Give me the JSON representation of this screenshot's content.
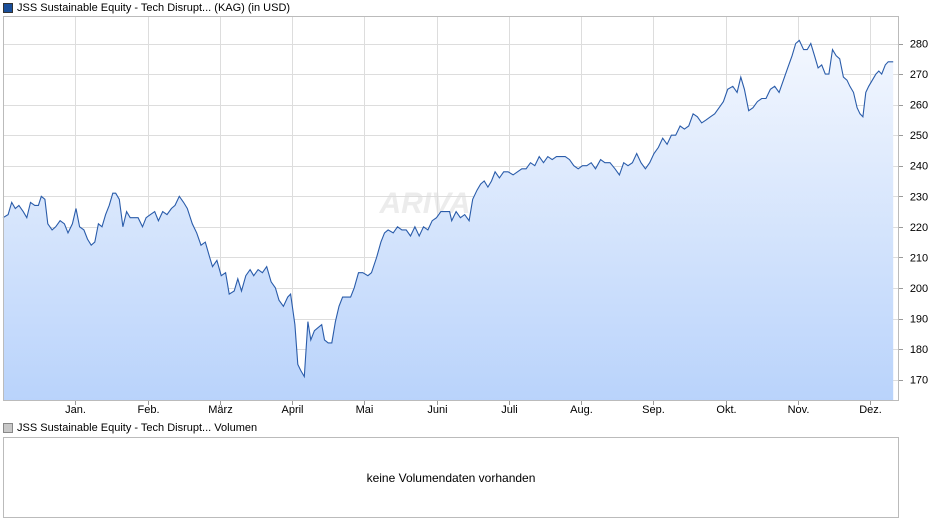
{
  "legend": {
    "price_label": "JSS Sustainable Equity - Tech Disrupt... (KAG) (in USD)",
    "volume_label": "JSS Sustainable Equity - Tech Disrupt... Volumen"
  },
  "volume": {
    "message": "keine Volumendaten vorhanden"
  },
  "watermark": "ARIVA.DE",
  "colors": {
    "line": "#2a5caa",
    "fill_top": "#f3f7fe",
    "fill_bottom": "#b9d3fb",
    "grid": "#dddddd",
    "frame": "#bbbbbb"
  },
  "chart_data": {
    "type": "area",
    "title": "",
    "xlabel": "",
    "ylabel": "",
    "y_axis_side": "right",
    "grid": true,
    "x_range": [
      0,
      12.4
    ],
    "ylim": [
      163,
      289
    ],
    "y_ticks": [
      170,
      180,
      190,
      200,
      210,
      220,
      230,
      240,
      250,
      260,
      270,
      280
    ],
    "x_ticks": [
      {
        "label": "Jan.",
        "x": 1
      },
      {
        "label": "Feb.",
        "x": 2
      },
      {
        "label": "März",
        "x": 3
      },
      {
        "label": "April",
        "x": 4
      },
      {
        "label": "Mai",
        "x": 5
      },
      {
        "label": "Juni",
        "x": 6
      },
      {
        "label": "Juli",
        "x": 7
      },
      {
        "label": "Aug.",
        "x": 8
      },
      {
        "label": "Sep.",
        "x": 9
      },
      {
        "label": "Okt.",
        "x": 10
      },
      {
        "label": "Nov.",
        "x": 11
      },
      {
        "label": "Dez.",
        "x": 12
      }
    ],
    "series": [
      {
        "points": [
          [
            0.0,
            223
          ],
          [
            0.07,
            224
          ],
          [
            0.12,
            228
          ],
          [
            0.17,
            226
          ],
          [
            0.22,
            227
          ],
          [
            0.28,
            225
          ],
          [
            0.33,
            223
          ],
          [
            0.38,
            228
          ],
          [
            0.44,
            227
          ],
          [
            0.49,
            227
          ],
          [
            0.53,
            230
          ],
          [
            0.58,
            229
          ],
          [
            0.62,
            221
          ],
          [
            0.68,
            219
          ],
          [
            0.73,
            220
          ],
          [
            0.79,
            222
          ],
          [
            0.85,
            221
          ],
          [
            0.9,
            218
          ],
          [
            0.96,
            221
          ],
          [
            1.01,
            226
          ],
          [
            1.06,
            220
          ],
          [
            1.12,
            219
          ],
          [
            1.17,
            216
          ],
          [
            1.22,
            214
          ],
          [
            1.27,
            215
          ],
          [
            1.32,
            221
          ],
          [
            1.37,
            220
          ],
          [
            1.42,
            224
          ],
          [
            1.47,
            227
          ],
          [
            1.52,
            231
          ],
          [
            1.56,
            231
          ],
          [
            1.61,
            229
          ],
          [
            1.66,
            220
          ],
          [
            1.71,
            225
          ],
          [
            1.76,
            223
          ],
          [
            1.81,
            223
          ],
          [
            1.87,
            223
          ],
          [
            1.93,
            220
          ],
          [
            1.98,
            223
          ],
          [
            2.04,
            224
          ],
          [
            2.1,
            225
          ],
          [
            2.15,
            222
          ],
          [
            2.21,
            225
          ],
          [
            2.27,
            224
          ],
          [
            2.33,
            226
          ],
          [
            2.38,
            227
          ],
          [
            2.44,
            230
          ],
          [
            2.5,
            228
          ],
          [
            2.55,
            226
          ],
          [
            2.62,
            221
          ],
          [
            2.68,
            218
          ],
          [
            2.74,
            214
          ],
          [
            2.8,
            215
          ],
          [
            2.86,
            210
          ],
          [
            2.9,
            207
          ],
          [
            2.96,
            209
          ],
          [
            3.02,
            204
          ],
          [
            3.08,
            205
          ],
          [
            3.13,
            198
          ],
          [
            3.2,
            199
          ],
          [
            3.25,
            203
          ],
          [
            3.3,
            199
          ],
          [
            3.36,
            204
          ],
          [
            3.42,
            206
          ],
          [
            3.47,
            204
          ],
          [
            3.53,
            206
          ],
          [
            3.59,
            205
          ],
          [
            3.65,
            207
          ],
          [
            3.71,
            202
          ],
          [
            3.77,
            200
          ],
          [
            3.82,
            196
          ],
          [
            3.88,
            194
          ],
          [
            3.94,
            197
          ],
          [
            3.98,
            198
          ],
          [
            4.04,
            188
          ],
          [
            4.08,
            175
          ],
          [
            4.12,
            173
          ],
          [
            4.17,
            171
          ],
          [
            4.22,
            189
          ],
          [
            4.26,
            183
          ],
          [
            4.31,
            186
          ],
          [
            4.36,
            187
          ],
          [
            4.41,
            188
          ],
          [
            4.45,
            183
          ],
          [
            4.5,
            182
          ],
          [
            4.55,
            182
          ],
          [
            4.6,
            189
          ],
          [
            4.65,
            194
          ],
          [
            4.7,
            197
          ],
          [
            4.75,
            197
          ],
          [
            4.81,
            197
          ],
          [
            4.86,
            200
          ],
          [
            4.92,
            205
          ],
          [
            4.98,
            205
          ],
          [
            5.05,
            204
          ],
          [
            5.1,
            205
          ],
          [
            5.17,
            210
          ],
          [
            5.23,
            215
          ],
          [
            5.28,
            218
          ],
          [
            5.33,
            219
          ],
          [
            5.4,
            218
          ],
          [
            5.46,
            220
          ],
          [
            5.52,
            219
          ],
          [
            5.58,
            219
          ],
          [
            5.64,
            217
          ],
          [
            5.7,
            220
          ],
          [
            5.76,
            217
          ],
          [
            5.82,
            220
          ],
          [
            5.88,
            219
          ],
          [
            5.94,
            222
          ],
          [
            6.0,
            223
          ],
          [
            6.06,
            225
          ],
          [
            6.12,
            225
          ],
          [
            6.18,
            225
          ],
          [
            6.21,
            222
          ],
          [
            6.27,
            225
          ],
          [
            6.33,
            223
          ],
          [
            6.39,
            224
          ],
          [
            6.45,
            222
          ],
          [
            6.5,
            229
          ],
          [
            6.56,
            232
          ],
          [
            6.61,
            234
          ],
          [
            6.66,
            235
          ],
          [
            6.71,
            233
          ],
          [
            6.76,
            235
          ],
          [
            6.81,
            238
          ],
          [
            6.87,
            236
          ],
          [
            6.93,
            238
          ],
          [
            6.99,
            238
          ],
          [
            7.06,
            237
          ],
          [
            7.12,
            238
          ],
          [
            7.18,
            239
          ],
          [
            7.24,
            239
          ],
          [
            7.3,
            241
          ],
          [
            7.36,
            240
          ],
          [
            7.42,
            243
          ],
          [
            7.48,
            241
          ],
          [
            7.54,
            243
          ],
          [
            7.6,
            242
          ],
          [
            7.66,
            243
          ],
          [
            7.72,
            243
          ],
          [
            7.78,
            243
          ],
          [
            7.84,
            242
          ],
          [
            7.9,
            240
          ],
          [
            7.96,
            239
          ],
          [
            8.02,
            240
          ],
          [
            8.08,
            240
          ],
          [
            8.14,
            241
          ],
          [
            8.2,
            239
          ],
          [
            8.27,
            242
          ],
          [
            8.33,
            241
          ],
          [
            8.4,
            241
          ],
          [
            8.47,
            239
          ],
          [
            8.53,
            237
          ],
          [
            8.59,
            241
          ],
          [
            8.65,
            240
          ],
          [
            8.71,
            241
          ],
          [
            8.77,
            244
          ],
          [
            8.83,
            241
          ],
          [
            8.89,
            239
          ],
          [
            8.95,
            241
          ],
          [
            9.01,
            244
          ],
          [
            9.07,
            246
          ],
          [
            9.13,
            249
          ],
          [
            9.19,
            247
          ],
          [
            9.25,
            250
          ],
          [
            9.31,
            250
          ],
          [
            9.37,
            253
          ],
          [
            9.43,
            252
          ],
          [
            9.49,
            253
          ],
          [
            9.55,
            257
          ],
          [
            9.61,
            256
          ],
          [
            9.67,
            254
          ],
          [
            9.73,
            255
          ],
          [
            9.79,
            256
          ],
          [
            9.85,
            257
          ],
          [
            9.91,
            259
          ],
          [
            9.97,
            261
          ],
          [
            10.03,
            265
          ],
          [
            10.1,
            266
          ],
          [
            10.16,
            264
          ],
          [
            10.21,
            269
          ],
          [
            10.26,
            265
          ],
          [
            10.32,
            258
          ],
          [
            10.38,
            259
          ],
          [
            10.44,
            261
          ],
          [
            10.5,
            262
          ],
          [
            10.56,
            262
          ],
          [
            10.62,
            265
          ],
          [
            10.68,
            266
          ],
          [
            10.74,
            264
          ],
          [
            10.8,
            268
          ],
          [
            10.86,
            272
          ],
          [
            10.92,
            276
          ],
          [
            10.97,
            280
          ],
          [
            11.02,
            281
          ],
          [
            11.08,
            278
          ],
          [
            11.13,
            278
          ],
          [
            11.18,
            280
          ],
          [
            11.23,
            276
          ],
          [
            11.28,
            272
          ],
          [
            11.33,
            273
          ],
          [
            11.38,
            270
          ],
          [
            11.43,
            270
          ],
          [
            11.48,
            278
          ],
          [
            11.53,
            276
          ],
          [
            11.58,
            275
          ],
          [
            11.63,
            269
          ],
          [
            11.68,
            268
          ],
          [
            11.72,
            266
          ],
          [
            11.77,
            264
          ],
          [
            11.82,
            259
          ],
          [
            11.86,
            257
          ],
          [
            11.9,
            256
          ],
          [
            11.94,
            264
          ],
          [
            11.98,
            266
          ],
          [
            12.03,
            268
          ],
          [
            12.08,
            270
          ],
          [
            12.12,
            271
          ],
          [
            12.16,
            270
          ],
          [
            12.21,
            273
          ],
          [
            12.25,
            274
          ],
          [
            12.29,
            274
          ],
          [
            12.32,
            274
          ]
        ]
      }
    ]
  }
}
